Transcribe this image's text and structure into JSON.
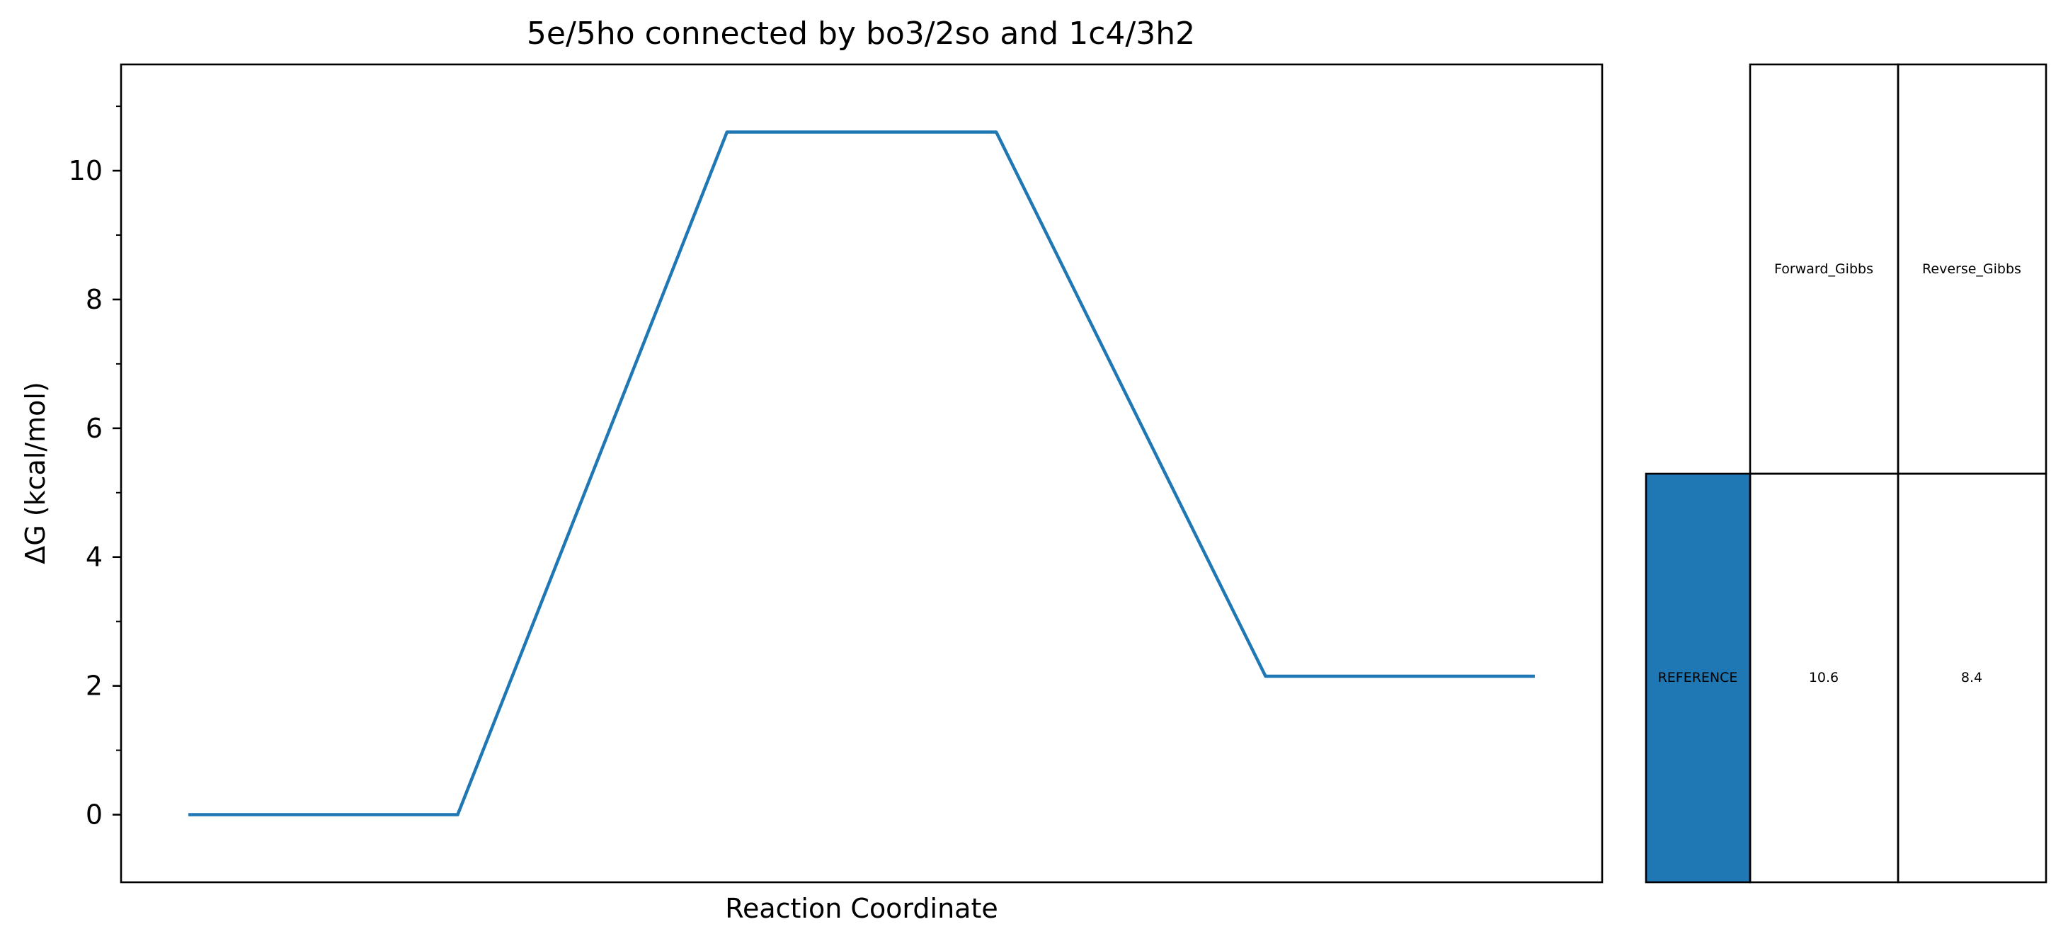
{
  "chart_data": {
    "type": "line",
    "title": "5e/5ho connected by bo3/2so and 1c4/3h2",
    "xlabel": "Reaction Coordinate",
    "ylabel": "ΔG (kcal/mol)",
    "ylim": [
      -1.05,
      11.65
    ],
    "xlim": [
      -0.25,
      5.25
    ],
    "yticks": [
      0,
      2,
      4,
      6,
      8,
      10
    ],
    "yticks_labels": [
      "0",
      "2",
      "4",
      "6",
      "8",
      "10"
    ],
    "yminor_ticks": [
      1,
      3,
      5,
      7,
      9,
      11
    ],
    "show_xticks": false,
    "grid": false,
    "series": [
      {
        "color": "#1f77b4",
        "x": [
          0,
          1,
          2,
          3,
          4,
          5
        ],
        "y": [
          0,
          0,
          10.6,
          10.6,
          2.15,
          2.15
        ]
      }
    ],
    "table": {
      "col_labels": [
        "Forward_Gibbs",
        "Reverse_Gibbs"
      ],
      "rows": [
        {
          "label": "REFERENCE",
          "label_color": "#1f77b4",
          "cells": [
            "10.6",
            "8.4"
          ]
        }
      ]
    }
  }
}
